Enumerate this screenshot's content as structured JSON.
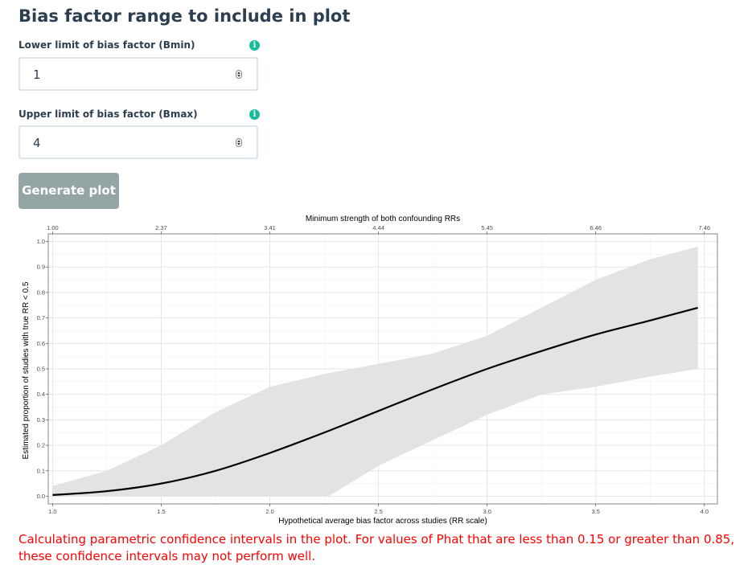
{
  "form": {
    "title": "Bias factor range to include in plot",
    "lower_label": "Lower limit of bias factor (Bmin)",
    "lower_value": "1",
    "upper_label": "Upper limit of bias factor (Bmax)",
    "upper_value": "4",
    "info_glyph": "i",
    "info_icon": "info-circle-icon",
    "generate_label": "Generate plot"
  },
  "warning": "Calculating parametric confidence intervals in the plot. For values of Phat that are less than 0.15 or greater than 0.85, these confidence intervals may not perform well.",
  "colors": {
    "title": "#2c3e50",
    "info": "#18bc9c",
    "button": "#95a5a6",
    "warning": "#ff0000",
    "band": "#e0e0e0"
  },
  "chart_data": {
    "type": "line",
    "title": "",
    "xlabel": "Hypothetical average bias factor across studies (RR scale)",
    "ylabel": "Estimated proportion of studies with true RR < 0.5",
    "secondary_xlabel": "Minimum strength of both confounding RRs",
    "xlim": [
      0.98,
      4.06
    ],
    "ylim": [
      -0.03,
      1.03
    ],
    "x_ticks": [
      1.0,
      1.5,
      2.0,
      2.5,
      3.0,
      3.5,
      4.0
    ],
    "x_tick_labels": [
      "1.0",
      "1.5",
      "2.0",
      "2.5",
      "3.0",
      "3.5",
      "4.0"
    ],
    "y_ticks": [
      0.0,
      0.1,
      0.2,
      0.3,
      0.4,
      0.5,
      0.6,
      0.7,
      0.8,
      0.9,
      1.0
    ],
    "y_tick_labels": [
      "0.0",
      "0.1",
      "0.2",
      "0.3",
      "0.4",
      "0.5",
      "0.6",
      "0.7",
      "0.8",
      "0.9",
      "1.0"
    ],
    "top_ticks": [
      1.0,
      1.5,
      2.0,
      2.5,
      3.0,
      3.5,
      4.0
    ],
    "top_tick_labels": [
      "1.00",
      "2.37",
      "3.41",
      "4.44",
      "5.45",
      "6.46",
      "7.46"
    ],
    "grid": true,
    "series": [
      {
        "role": "estimate",
        "x": [
          1.0,
          1.25,
          1.5,
          1.75,
          2.0,
          2.25,
          2.5,
          2.75,
          3.0,
          3.25,
          3.5,
          3.75,
          3.97
        ],
        "y": [
          0.005,
          0.02,
          0.05,
          0.1,
          0.17,
          0.25,
          0.335,
          0.42,
          0.5,
          0.57,
          0.635,
          0.69,
          0.74
        ]
      },
      {
        "role": "ci_upper",
        "x": [
          1.0,
          1.25,
          1.5,
          1.75,
          2.0,
          2.25,
          2.5,
          2.75,
          3.0,
          3.25,
          3.5,
          3.75,
          3.97
        ],
        "y": [
          0.04,
          0.1,
          0.2,
          0.33,
          0.43,
          0.48,
          0.52,
          0.56,
          0.63,
          0.74,
          0.85,
          0.93,
          0.98
        ]
      },
      {
        "role": "ci_lower",
        "x": [
          2.27,
          2.5,
          2.75,
          3.0,
          3.25,
          3.5,
          3.75,
          3.97
        ],
        "y": [
          0.0,
          0.12,
          0.22,
          0.32,
          0.4,
          0.43,
          0.47,
          0.5
        ]
      }
    ]
  }
}
